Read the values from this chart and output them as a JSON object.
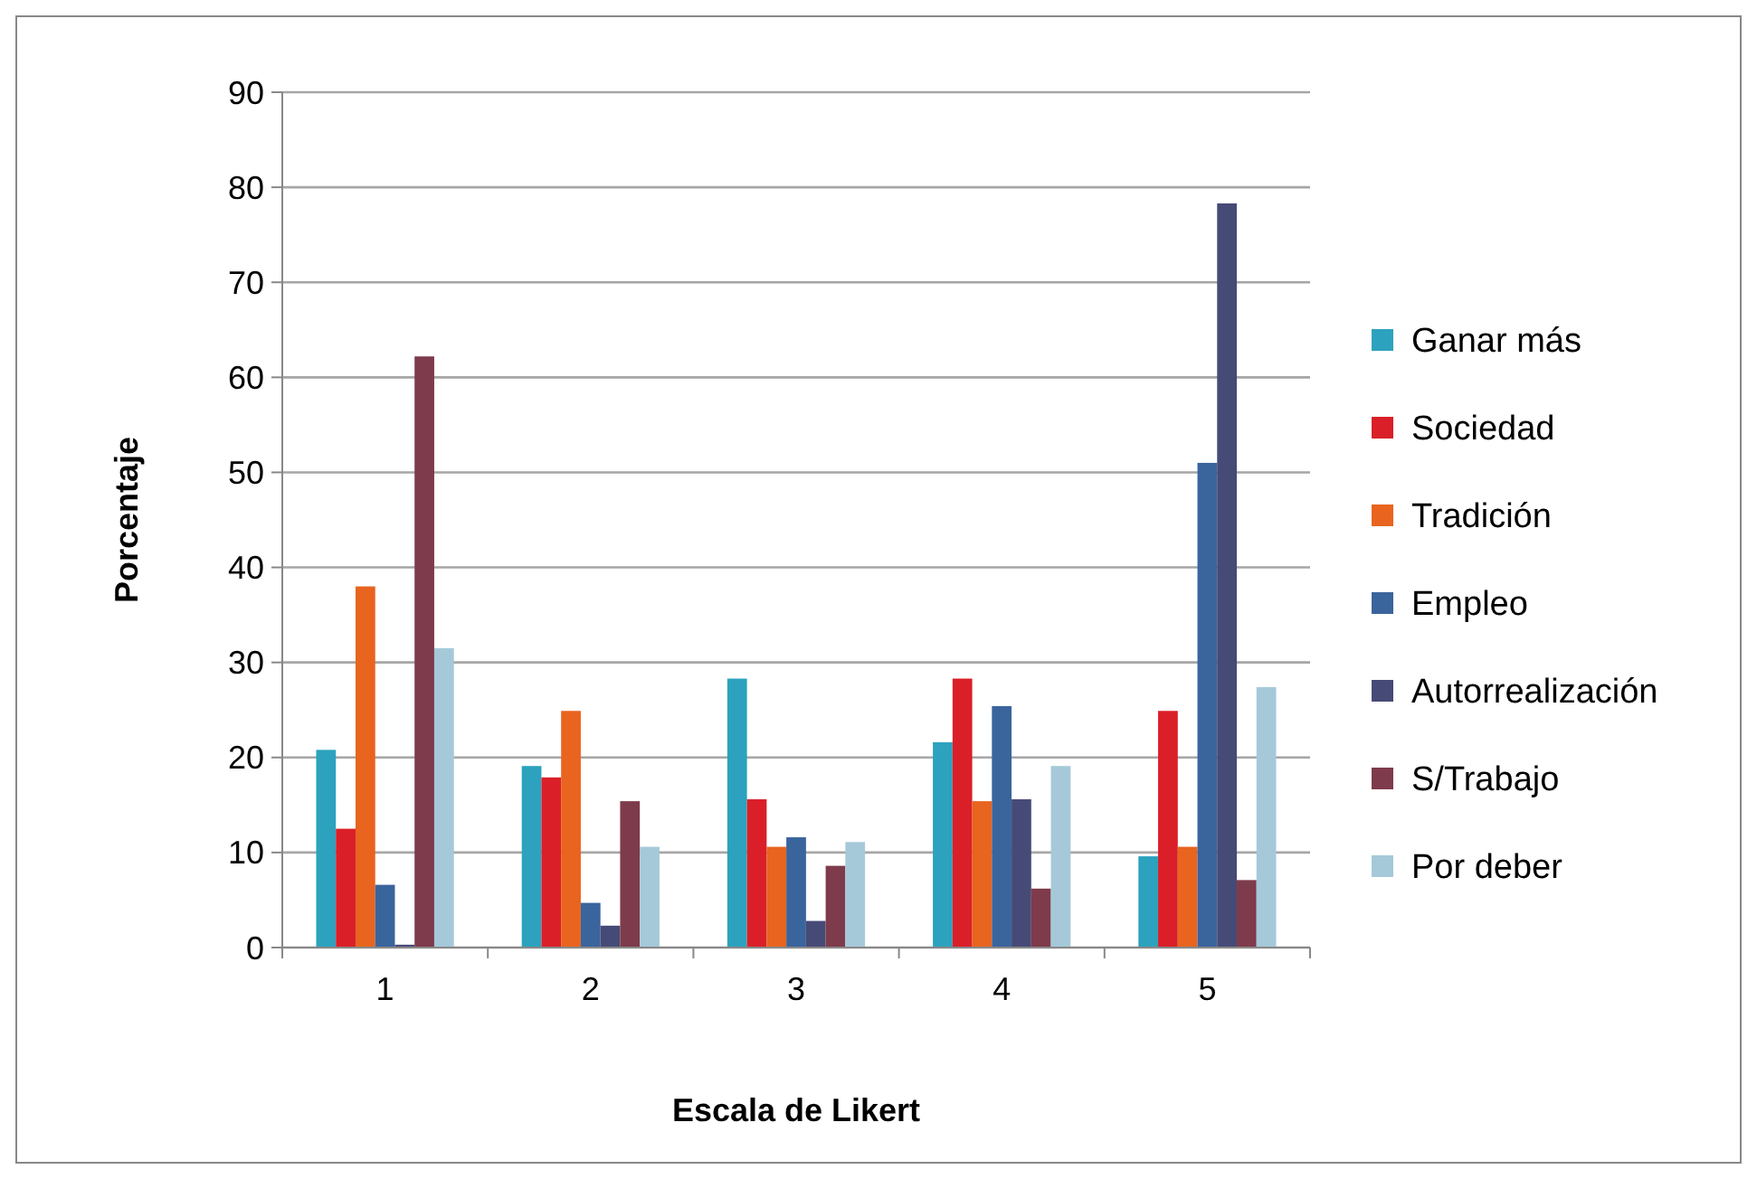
{
  "chart_data": {
    "type": "bar",
    "xlabel": "Escala de Likert",
    "ylabel": "Porcentaje",
    "categories": [
      "1",
      "2",
      "3",
      "4",
      "5"
    ],
    "series": [
      {
        "name": "Ganar más",
        "color": "#2ca2be",
        "values": [
          20.8,
          19.1,
          28.3,
          21.6,
          9.6
        ]
      },
      {
        "name": "Sociedad",
        "color": "#da1f28",
        "values": [
          12.5,
          17.9,
          15.6,
          28.3,
          24.9
        ]
      },
      {
        "name": "Tradición",
        "color": "#e8641f",
        "values": [
          38,
          24.9,
          10.6,
          15.4,
          10.6
        ]
      },
      {
        "name": "Empleo",
        "color": "#3a649c",
        "values": [
          6.6,
          4.7,
          11.6,
          25.4,
          51
        ]
      },
      {
        "name": "Autorrealización",
        "color": "#464a76",
        "values": [
          0.3,
          2.3,
          2.8,
          15.6,
          78.3
        ]
      },
      {
        "name": "S/Trabajo",
        "color": "#7e3b4b",
        "values": [
          62.2,
          15.4,
          8.6,
          6.2,
          7.1
        ]
      },
      {
        "name": "Por deber",
        "color": "#a5c9d9",
        "values": [
          31.5,
          10.6,
          11.1,
          19.1,
          27.4
        ]
      }
    ],
    "ylim": [
      0,
      90
    ],
    "yticks": [
      0,
      10,
      20,
      30,
      40,
      50,
      60,
      70,
      80,
      90
    ],
    "grid": "y",
    "legend": "right"
  }
}
